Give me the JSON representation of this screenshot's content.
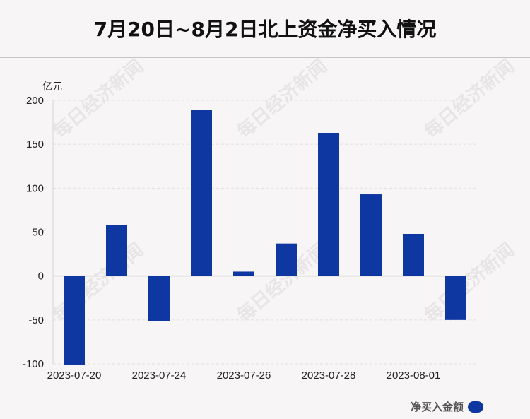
{
  "title": "7月20日~8月2日北上资金净买入情况",
  "y_unit": "亿元",
  "watermark": "每日经济新闻",
  "legend": {
    "label": "净买入金额",
    "color": "#0e37a1"
  },
  "chart_data": {
    "type": "bar",
    "title": "7月20日~8月2日北上资金净买入情况",
    "ylabel": "亿元",
    "xlabel": "",
    "ylim": [
      -100,
      200
    ],
    "yticks": [
      200,
      150,
      100,
      50,
      0,
      -50,
      -100
    ],
    "x_tick_labels": [
      "2023-07-20",
      "2023-07-24",
      "2023-07-26",
      "2023-07-28",
      "2023-08-01"
    ],
    "series": [
      {
        "name": "净买入金额",
        "color": "#0e37a1",
        "values": [
          -101,
          58,
          -51,
          189,
          5,
          37,
          163,
          93,
          48,
          -50
        ]
      }
    ],
    "grid": true,
    "legend_position": "bottom-right"
  }
}
